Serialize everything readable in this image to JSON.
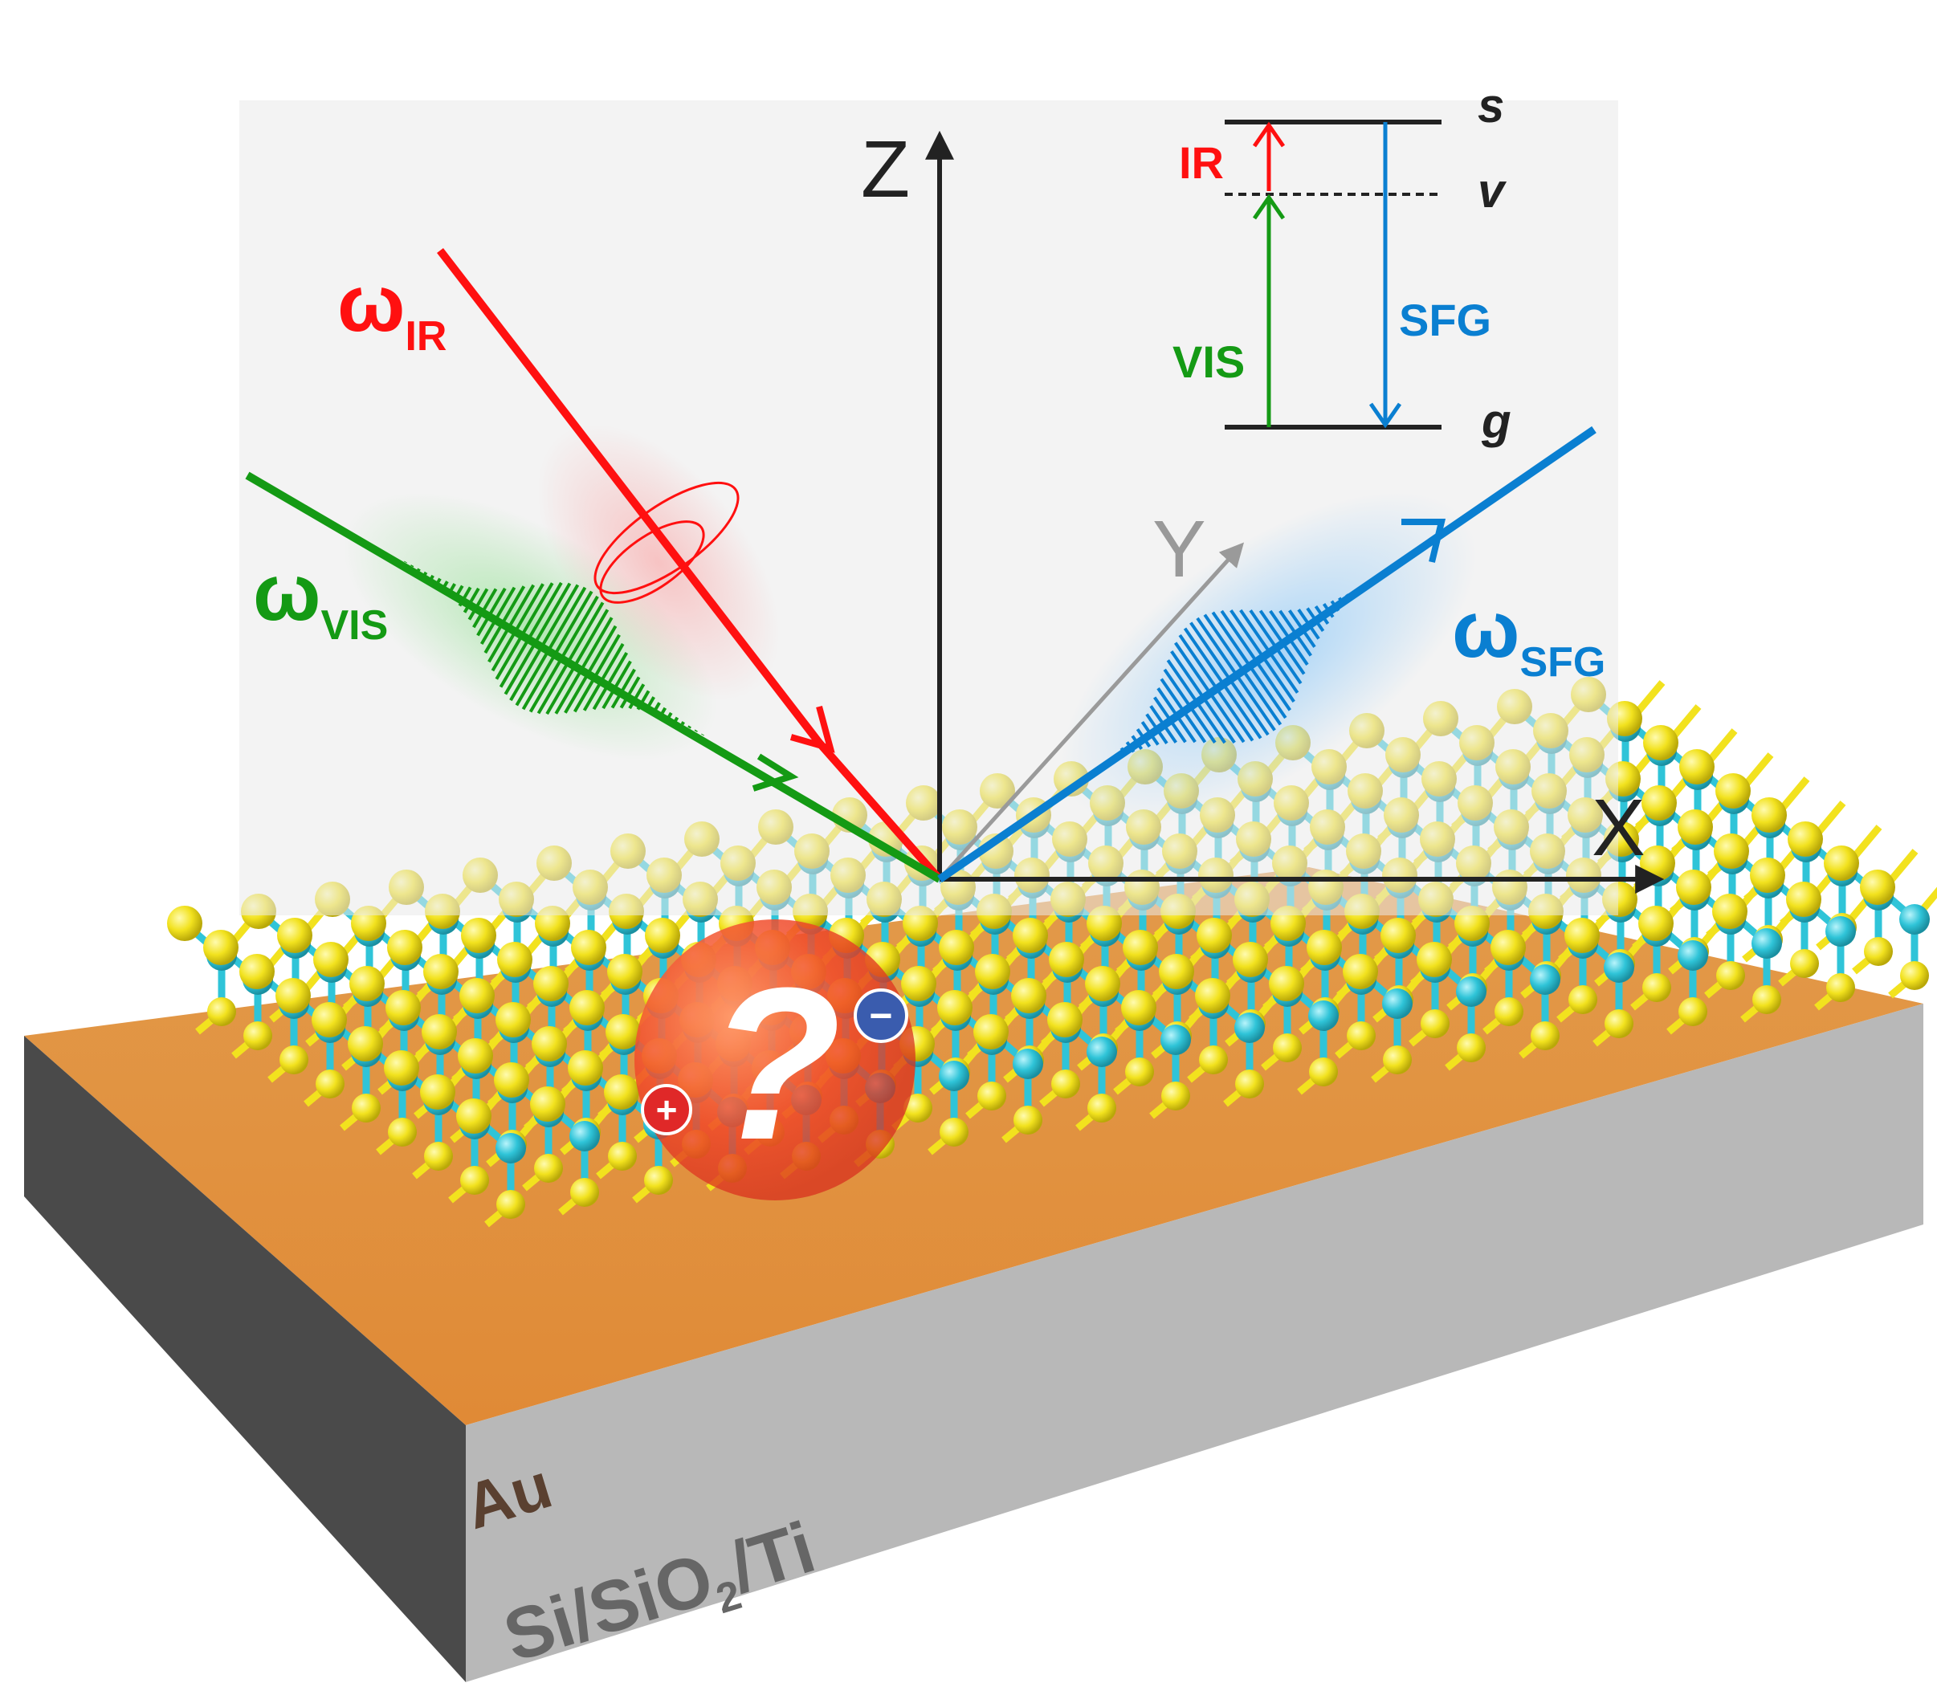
{
  "axes": {
    "z": "Z",
    "x": "X",
    "y": "Y"
  },
  "beams": {
    "ir": {
      "symbol": "ω",
      "sub": "IR",
      "color": "#ff1010"
    },
    "vis": {
      "symbol": "ω",
      "sub": "VIS",
      "color": "#149a14"
    },
    "sfg": {
      "symbol": "ω",
      "sub": "SFG",
      "color": "#0a7fd1"
    }
  },
  "energy_diagram": {
    "levels": {
      "s": "s",
      "v": "v",
      "g": "g"
    },
    "transitions": {
      "ir": "IR",
      "vis": "VIS",
      "sfg": "SFG"
    }
  },
  "charge": {
    "question": "?",
    "plus": "+",
    "minus": "−"
  },
  "substrate": {
    "top_label": "Au",
    "bottom_label_parts": {
      "a": "Si/SiO",
      "sub": "2",
      "b": "/Ti"
    },
    "colors": {
      "gold": "#e8913b",
      "side": "#b8b8b8",
      "front": "#4a4a4a"
    }
  },
  "lattice": {
    "sulfur_color": "#f2e21e",
    "metal_color": "#2fc4d8"
  }
}
